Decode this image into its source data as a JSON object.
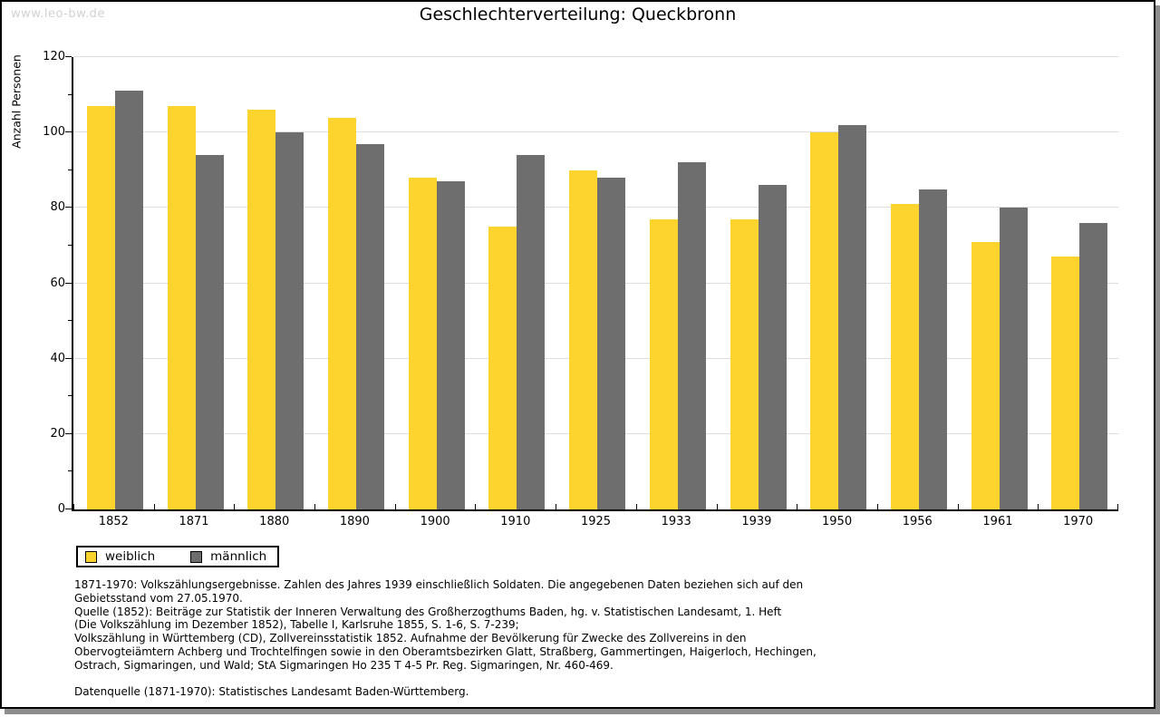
{
  "watermark": "www.leo-bw.de",
  "chart_data": {
    "type": "bar",
    "title": "Geschlechterverteilung: Queckbronn",
    "ylabel": "Anzahl Personen",
    "xlabel": "",
    "categories": [
      "1852",
      "1871",
      "1880",
      "1890",
      "1900",
      "1910",
      "1925",
      "1933",
      "1939",
      "1950",
      "1956",
      "1961",
      "1970"
    ],
    "series": [
      {
        "name": "weiblich",
        "color": "#FCD42D",
        "values": [
          107,
          107,
          106,
          104,
          88,
          75,
          90,
          77,
          77,
          100,
          81,
          71,
          67
        ]
      },
      {
        "name": "männlich",
        "color": "#6E6E6E",
        "values": [
          111,
          94,
          100,
          97,
          87,
          94,
          88,
          92,
          86,
          102,
          85,
          80,
          76
        ]
      }
    ],
    "ylim": [
      0,
      120
    ],
    "yticks": [
      0,
      20,
      40,
      60,
      80,
      100,
      120
    ],
    "y_minor_step": 10,
    "grid": true,
    "legend_position": "bottom-left"
  },
  "footer": {
    "lines": [
      "1871-1970: Volkszählungsergebnisse. Zahlen des Jahres 1939 einschließlich Soldaten. Die angegebenen Daten beziehen sich auf den",
      "Gebietsstand vom 27.05.1970.",
      "Quelle (1852): Beiträge zur Statistik der Inneren Verwaltung des Großherzogthums Baden, hg. v. Statistischen Landesamt, 1. Heft",
      "(Die Volkszählung im Dezember 1852), Tabelle I, Karlsruhe 1855, S. 1-6, S. 7-239;",
      "Volkszählung in Württemberg (CD), Zollvereinsstatistik 1852. Aufnahme der Bevölkerung für Zwecke des Zollvereins in den",
      "Obervogteiämtern Achberg und Trochtelfingen sowie in den Oberamtsbezirken Glatt, Straßberg, Gammertingen, Haigerloch, Hechingen,",
      "Ostrach, Sigmaringen, und Wald; StA Sigmaringen Ho 235 T 4-5 Pr. Reg. Sigmaringen, Nr. 460-469.",
      "",
      "Datenquelle (1871-1970): Statistisches Landesamt Baden-Württemberg."
    ]
  }
}
